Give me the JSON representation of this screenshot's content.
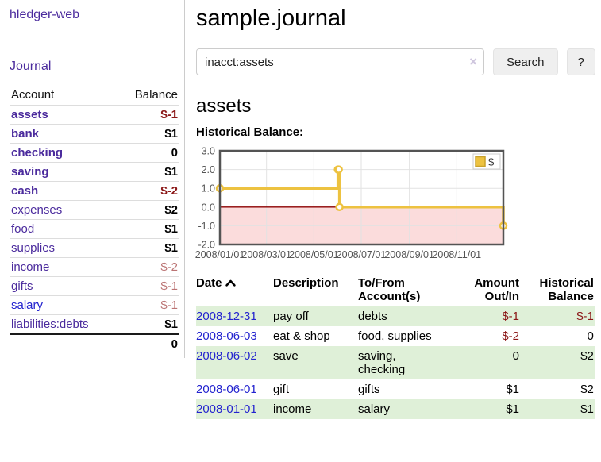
{
  "colors": {
    "link_purple": "#4b2b9d",
    "link_blue": "#2323cf",
    "negative_strong": "#8b1717",
    "negative_weak": "#bb7474",
    "row_green": "#dff0d8",
    "chart_series": "#edc240",
    "chart_negative_region": "#fbdcdc",
    "chart_zero_line": "#8b0000"
  },
  "sidebar": {
    "brand": "hledger-web",
    "journal_link": "Journal",
    "table": {
      "account_header": "Account",
      "balance_header": "Balance",
      "accounts": [
        {
          "name": "assets",
          "indent": 1,
          "bold": true,
          "balance": "$-1",
          "balance_class": "neg-strong"
        },
        {
          "name": "bank",
          "indent": 2,
          "bold": true,
          "balance": "$1",
          "balance_class": ""
        },
        {
          "name": "checking",
          "indent": 3,
          "bold": true,
          "balance": "0",
          "balance_class": ""
        },
        {
          "name": "saving",
          "indent": 3,
          "bold": true,
          "balance": "$1",
          "balance_class": ""
        },
        {
          "name": "cash",
          "indent": 2,
          "bold": true,
          "balance": "$-2",
          "balance_class": "neg-strong"
        },
        {
          "name": "expenses",
          "indent": 1,
          "bold": false,
          "balance": "$2",
          "balance_class": ""
        },
        {
          "name": "food",
          "indent": 2,
          "bold": false,
          "balance": "$1",
          "balance_class": ""
        },
        {
          "name": "supplies",
          "indent": 2,
          "bold": false,
          "balance": "$1",
          "balance_class": ""
        },
        {
          "name": "income",
          "indent": 1,
          "bold": false,
          "balance": "$-2",
          "balance_class": "neg-weak"
        },
        {
          "name": "gifts",
          "indent": 2,
          "bold": false,
          "balance": "$-1",
          "balance_class": "neg-weak"
        },
        {
          "name": "salary",
          "indent": 2,
          "bold": false,
          "link_variant": "blue",
          "balance": "$-1",
          "balance_class": "neg-weak"
        },
        {
          "name": "liabilities:debts",
          "indent": 1,
          "bold": false,
          "balance": "$1",
          "balance_class": ""
        }
      ],
      "total": "0"
    }
  },
  "header": {
    "title": "sample.journal"
  },
  "search": {
    "value": "inacct:assets",
    "clear_icon": "×",
    "button_label": "Search",
    "help_label": "?"
  },
  "account_page": {
    "title": "assets",
    "chart_label": "Historical Balance:"
  },
  "chart_data": {
    "type": "line",
    "style": "steps",
    "title": "Historical Balance",
    "series": [
      {
        "name": "$",
        "color": "#edc240",
        "points": [
          [
            "2008-01-01",
            1
          ],
          [
            "2008-06-01",
            2
          ],
          [
            "2008-06-02",
            2
          ],
          [
            "2008-06-03",
            0
          ],
          [
            "2008-12-31",
            -1
          ]
        ]
      }
    ],
    "x_range": [
      "2008-01-01",
      "2008-12-31"
    ],
    "x_ticks": [
      "2008/01/01",
      "2008/03/01",
      "2008/05/01",
      "2008/07/01",
      "2008/09/01",
      "2008/11/01"
    ],
    "y_ticks": [
      3.0,
      2.0,
      1.0,
      0.0,
      -1.0,
      -2.0
    ],
    "ylim": [
      -2,
      3
    ],
    "grid": true,
    "negative_region_shaded": true,
    "legend": {
      "label": "$",
      "position": "top-right"
    }
  },
  "register": {
    "columns": [
      {
        "label": "Date",
        "sorted": "asc"
      },
      {
        "label": "Description"
      },
      {
        "label": "To/From Account(s)"
      },
      {
        "label": "Amount Out/In",
        "align": "right"
      },
      {
        "label": "Historical Balance",
        "align": "right"
      }
    ],
    "rows": [
      {
        "date": "2008-12-31",
        "description": "pay off",
        "accounts": [
          "debts"
        ],
        "amount": "$-1",
        "amount_negative": true,
        "balance": "$-1",
        "balance_negative": true
      },
      {
        "date": "2008-06-03",
        "description": "eat & shop",
        "accounts": [
          "food, supplies"
        ],
        "amount": "$-2",
        "amount_negative": true,
        "balance": "0",
        "balance_negative": false
      },
      {
        "date": "2008-06-02",
        "description": "save",
        "accounts": [
          "saving,",
          "checking"
        ],
        "amount": "0",
        "amount_negative": false,
        "balance": "$2",
        "balance_negative": false
      },
      {
        "date": "2008-06-01",
        "description": "gift",
        "accounts": [
          "gifts"
        ],
        "amount": "$1",
        "amount_negative": false,
        "balance": "$2",
        "balance_negative": false
      },
      {
        "date": "2008-01-01",
        "description": "income",
        "accounts": [
          "salary"
        ],
        "amount": "$1",
        "amount_negative": false,
        "balance": "$1",
        "balance_negative": false
      }
    ]
  }
}
